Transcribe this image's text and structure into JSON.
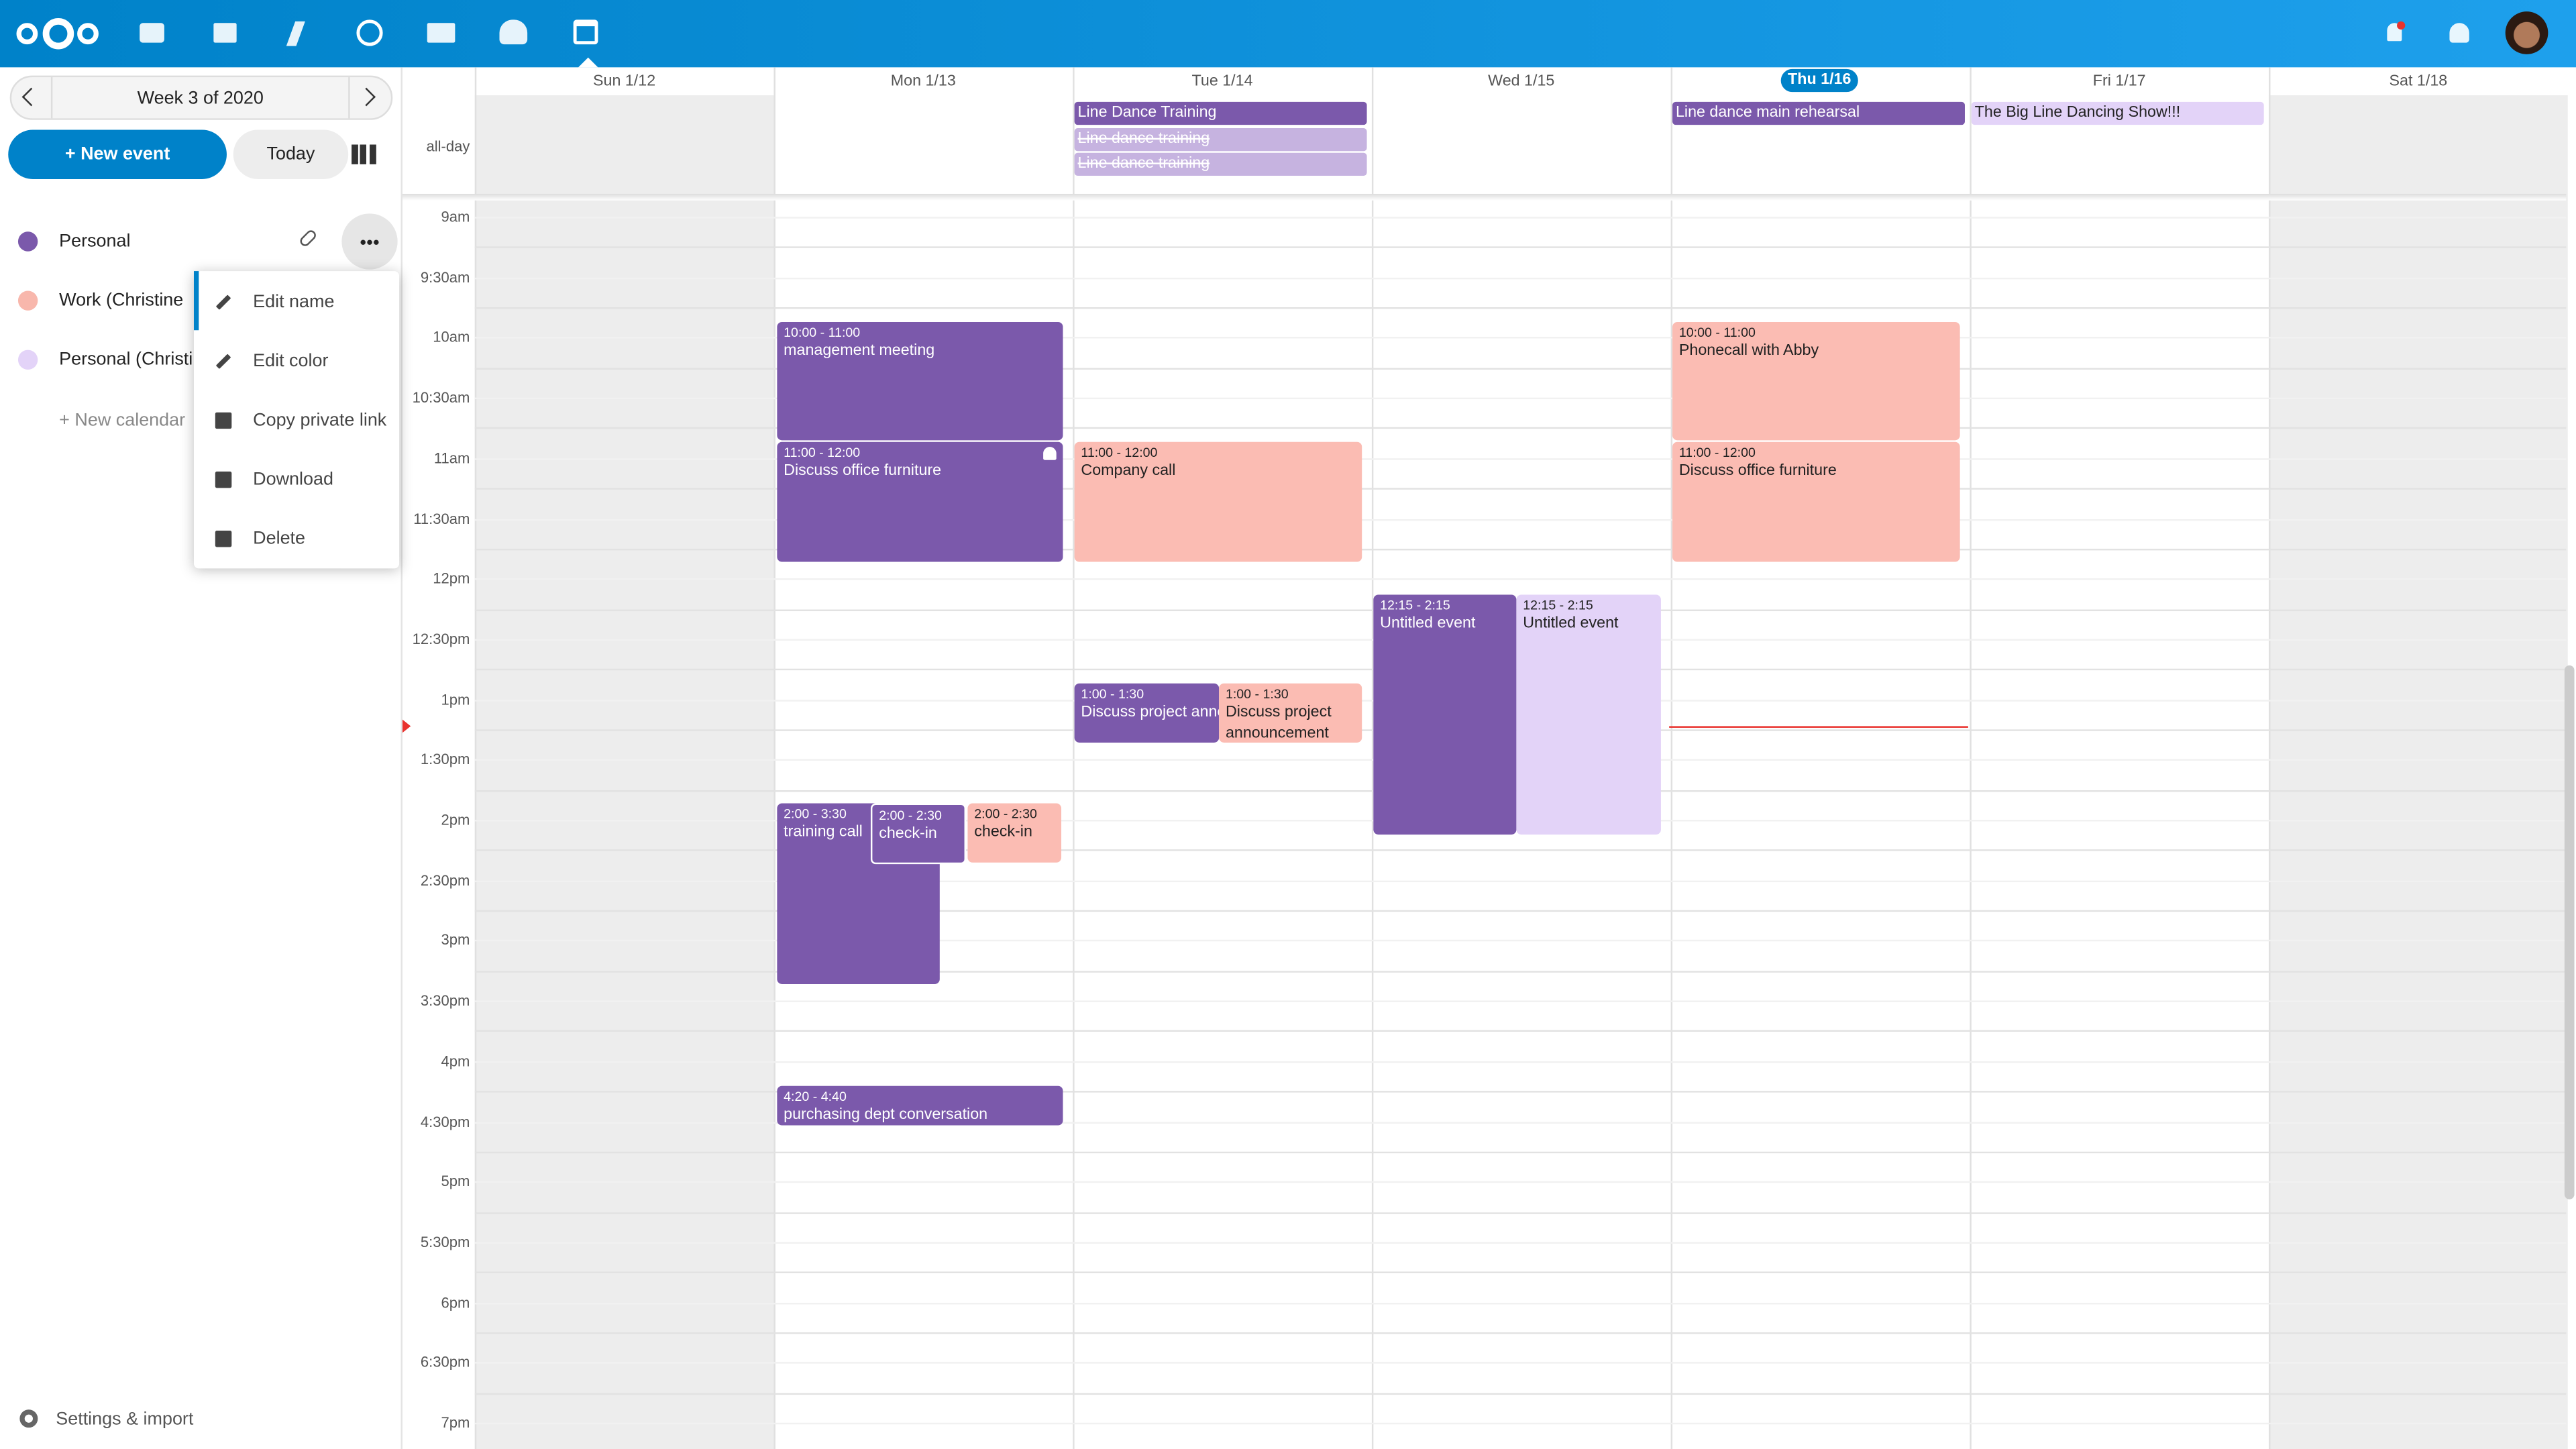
{
  "sidebar": {
    "week": "Week 3 of 2020",
    "new_event": "+ New event",
    "today": "Today",
    "calendars": [
      {
        "name": "Personal"
      },
      {
        "name": "Work (Christine"
      },
      {
        "name": "Personal (Christi"
      }
    ],
    "new_calendar": "+ New calendar",
    "menu": [
      "Edit name",
      "Edit color",
      "Copy private link",
      "Download",
      "Delete"
    ],
    "settings": "Settings & import"
  },
  "calendar": {
    "days": [
      "Sun 1/12",
      "Mon 1/13",
      "Tue 1/14",
      "Wed 1/15",
      "Thu 1/16",
      "Fri 1/17",
      "Sat 1/18"
    ],
    "allday_label": "all-day",
    "allday": [
      {
        "title": "Line Dance Training"
      },
      {
        "title": "Line dance training"
      },
      {
        "title": "Line dance training"
      },
      {
        "title": "Line dance main rehearsal"
      },
      {
        "title": "The Big Line Dancing Show!!!"
      }
    ],
    "times": [
      "9am",
      "9:30am",
      "10am",
      "10:30am",
      "11am",
      "11:30am",
      "12pm",
      "12:30pm",
      "1pm",
      "1:30pm",
      "2pm",
      "2:30pm",
      "3pm",
      "3:30pm",
      "4pm",
      "4:30pm",
      "5pm",
      "5:30pm",
      "6pm",
      "6:30pm",
      "7pm"
    ],
    "events": [
      {
        "time": "10:00 - 11:00",
        "title": "management meeting"
      },
      {
        "time": "11:00 - 12:00",
        "title": "Discuss office furniture"
      },
      {
        "time": "11:00 - 12:00",
        "title": "Company call"
      },
      {
        "time": "10:00 - 11:00",
        "title": "Phonecall with Abby"
      },
      {
        "time": "11:00 - 12:00",
        "title": "Discuss office furniture"
      },
      {
        "time": "12:15 - 2:15",
        "title": "Untitled event"
      },
      {
        "time": "12:15 - 2:15",
        "title": "Untitled event"
      },
      {
        "time": "1:00 - 1:30",
        "title": "Discuss project announcement"
      },
      {
        "time": "1:00 - 1:30",
        "title": "Discuss project announcement"
      },
      {
        "time": "2:00 - 3:30",
        "title": "training call"
      },
      {
        "time": "2:00 - 2:30",
        "title": "check-in"
      },
      {
        "time": "2:00 - 2:30",
        "title": "check-in"
      },
      {
        "time": "4:20 - 4:40",
        "title": "purchasing dept conversation"
      }
    ]
  }
}
